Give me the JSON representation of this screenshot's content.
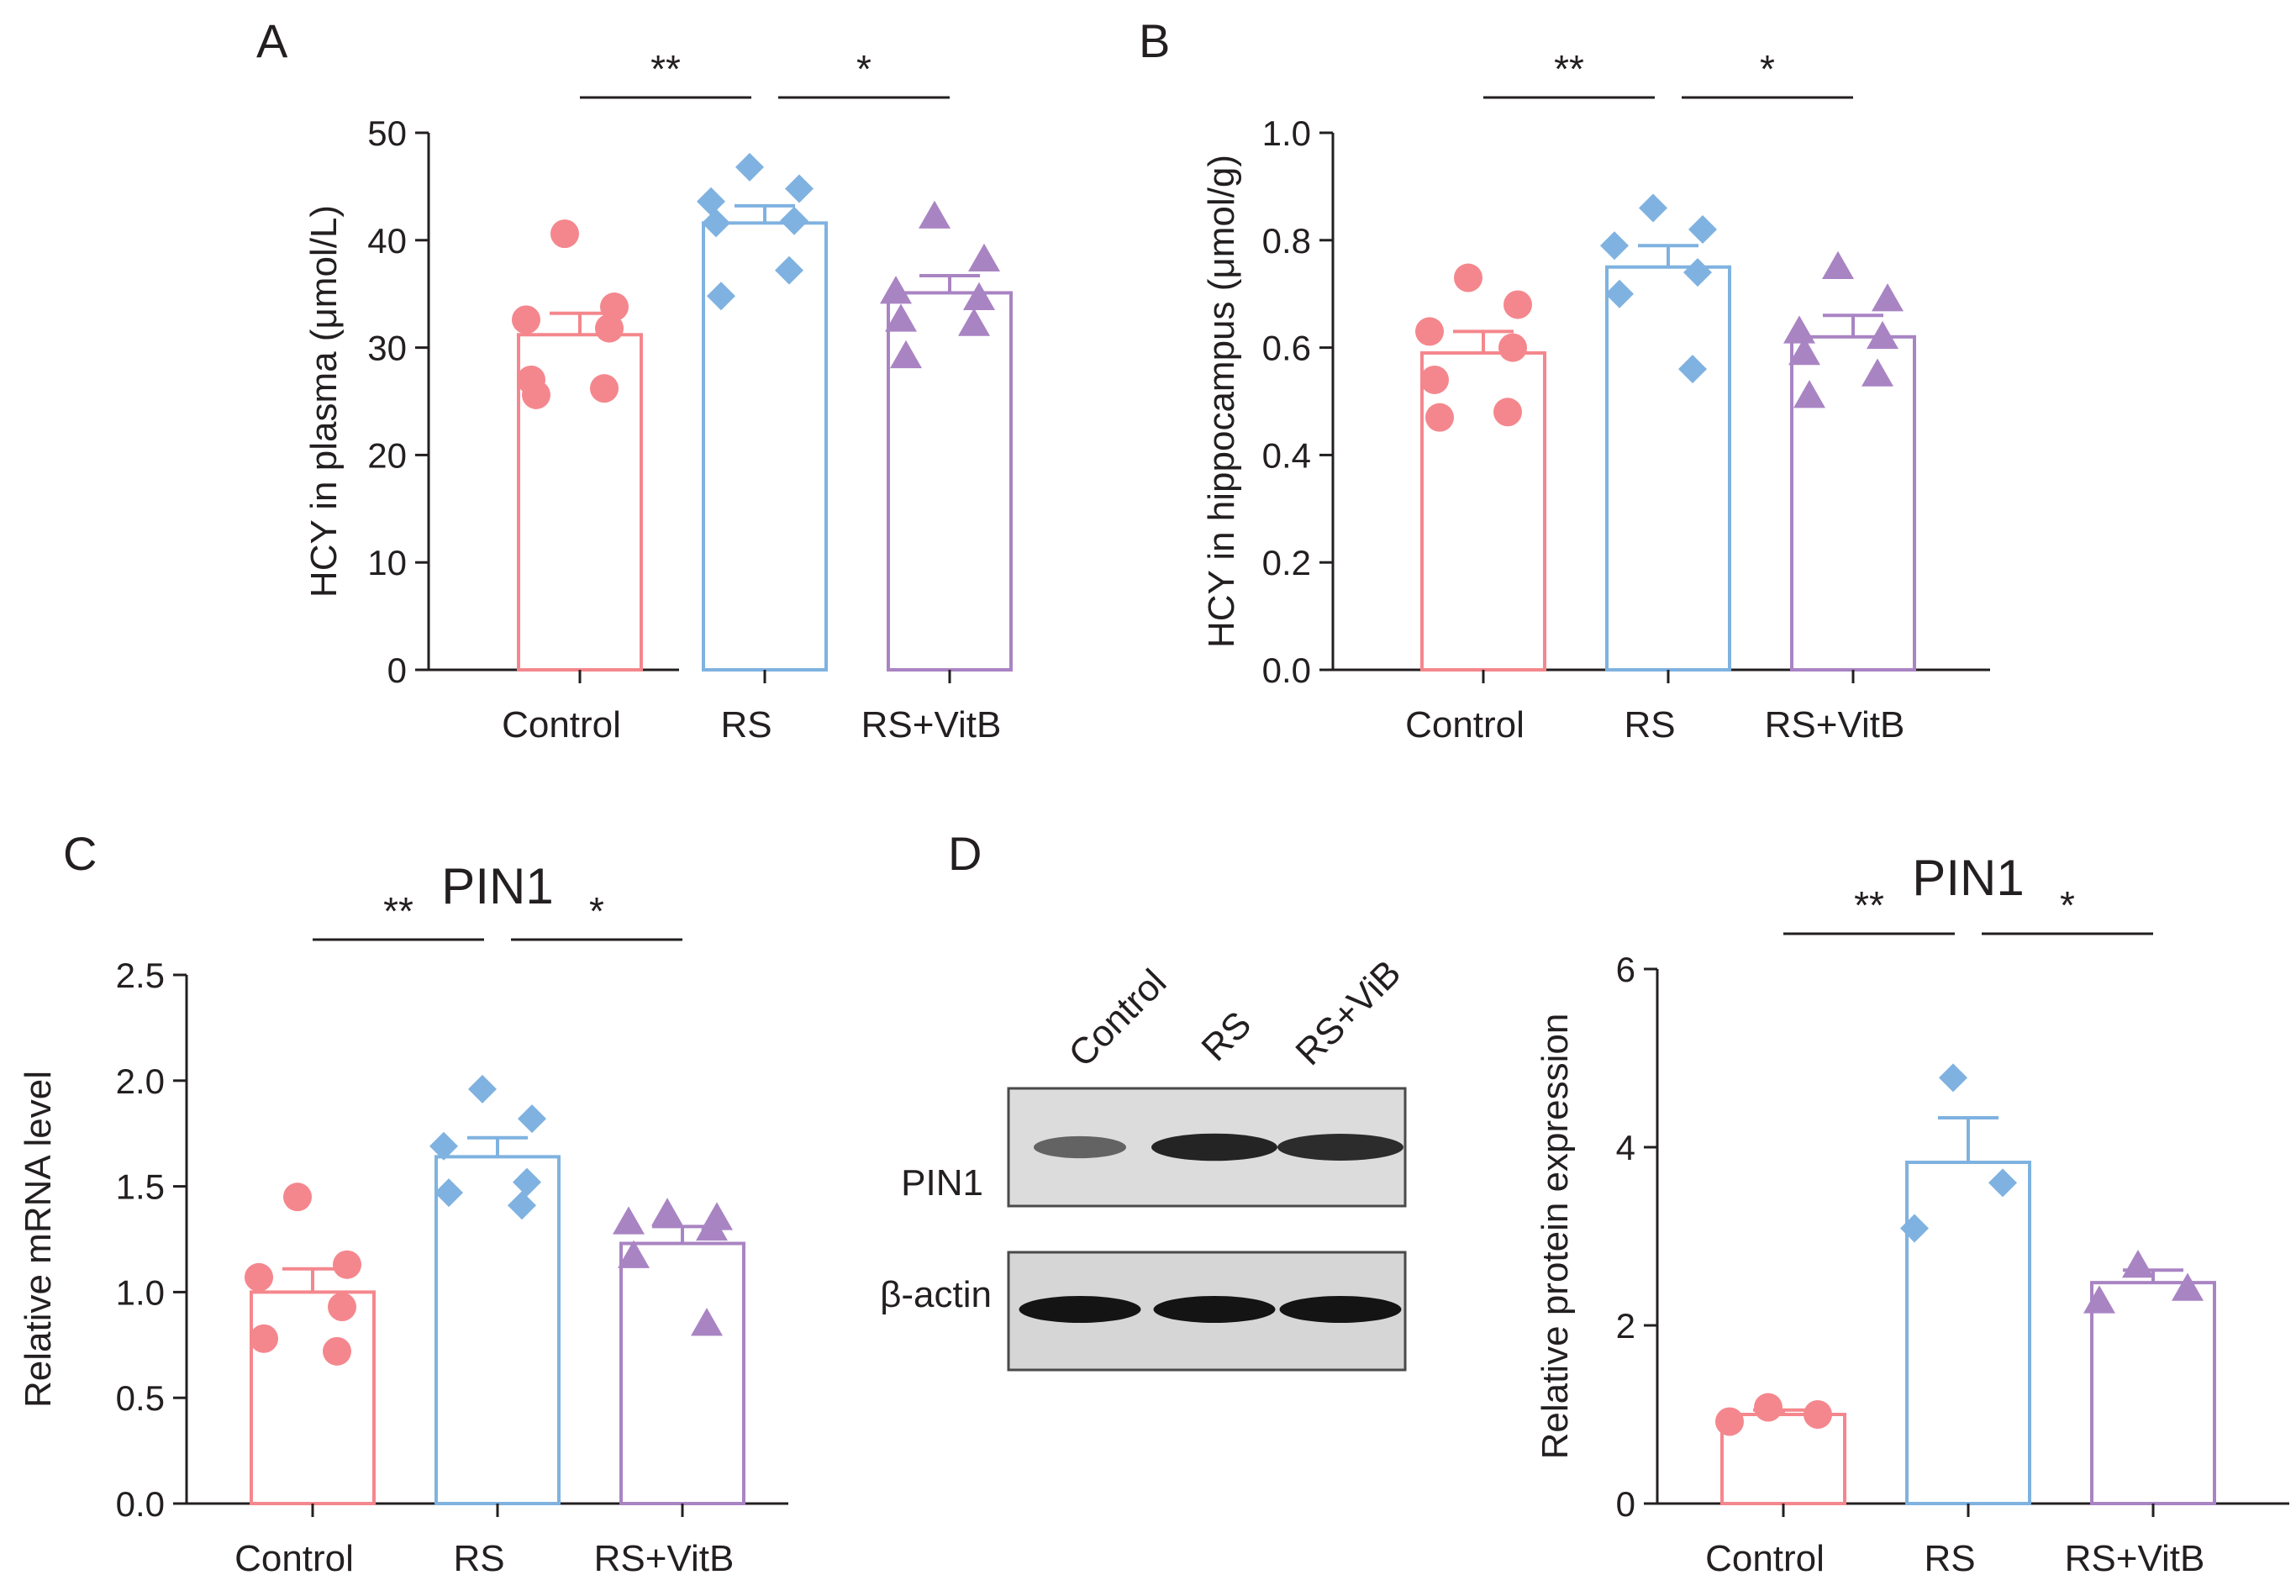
{
  "panel_labels": {
    "a": "A",
    "b": "B",
    "c": "C",
    "d": "D"
  },
  "colors": {
    "control": "#f4878d",
    "rs": "#7fb2e0",
    "rsvitb": "#a984c3",
    "axis": "#231f20"
  },
  "chart_data": [
    {
      "id": "A",
      "type": "bar",
      "title": "",
      "xlabel": "",
      "ylabel": "HCY in plasma (μmol/L)",
      "categories": [
        "Control",
        "RS",
        "RS+VitB"
      ],
      "ylim": [
        0,
        50
      ],
      "yticks": [
        0,
        10,
        20,
        30,
        40,
        50
      ],
      "tick_decimals": 0,
      "means": [
        31.2,
        41.6,
        35.1
      ],
      "sem": [
        2.0,
        1.6,
        1.6
      ],
      "points": [
        [
          40.6,
          33.8,
          32.6,
          31.8,
          27.0,
          26.2,
          25.6
        ],
        [
          46.8,
          44.8,
          43.6,
          41.8,
          41.6,
          37.2,
          34.8
        ],
        [
          42.2,
          38.2,
          35.2,
          34.6,
          32.6,
          32.2,
          29.2
        ]
      ],
      "markers": [
        "circle",
        "diamond",
        "triangle"
      ],
      "significance": [
        {
          "from": 0,
          "to": 1,
          "label": "**"
        },
        {
          "from": 1,
          "to": 2,
          "label": "*"
        }
      ]
    },
    {
      "id": "B",
      "type": "bar",
      "title": "",
      "xlabel": "",
      "ylabel": "HCY in hippocampus (μmol/g)",
      "categories": [
        "Control",
        "RS",
        "RS+VitB"
      ],
      "ylim": [
        0,
        1.0
      ],
      "yticks": [
        0.0,
        0.2,
        0.4,
        0.6,
        0.8,
        1.0
      ],
      "tick_decimals": 1,
      "means": [
        0.59,
        0.75,
        0.62
      ],
      "sem": [
        0.04,
        0.04,
        0.04
      ],
      "points": [
        [
          0.73,
          0.68,
          0.63,
          0.6,
          0.54,
          0.48,
          0.47
        ],
        [
          0.86,
          0.82,
          0.79,
          0.74,
          0.7,
          0.56
        ],
        [
          0.75,
          0.69,
          0.63,
          0.62,
          0.59,
          0.55,
          0.51
        ]
      ],
      "markers": [
        "circle",
        "diamond",
        "triangle"
      ],
      "significance": [
        {
          "from": 0,
          "to": 1,
          "label": "**"
        },
        {
          "from": 1,
          "to": 2,
          "label": "*"
        }
      ]
    },
    {
      "id": "C",
      "type": "bar",
      "title": "PIN1",
      "xlabel": "",
      "ylabel": "Relative mRNA level",
      "categories": [
        "Control",
        "RS",
        "RS+VitB"
      ],
      "ylim": [
        0,
        2.5
      ],
      "yticks": [
        0.0,
        0.5,
        1.0,
        1.5,
        2.0,
        2.5
      ],
      "tick_decimals": 1,
      "means": [
        1.0,
        1.64,
        1.23
      ],
      "sem": [
        0.11,
        0.09,
        0.08
      ],
      "points": [
        [
          1.45,
          1.13,
          1.07,
          0.93,
          0.78,
          0.72
        ],
        [
          1.96,
          1.82,
          1.69,
          1.52,
          1.47,
          1.41
        ],
        [
          1.37,
          1.35,
          1.33,
          1.3,
          1.17,
          0.85
        ]
      ],
      "markers": [
        "circle",
        "diamond",
        "triangle"
      ],
      "significance": [
        {
          "from": 0,
          "to": 1,
          "label": "**"
        },
        {
          "from": 1,
          "to": 2,
          "label": "*"
        }
      ]
    },
    {
      "id": "D",
      "type": "bar",
      "title": "PIN1",
      "xlabel": "",
      "ylabel": "Relative protein expression",
      "categories": [
        "Control",
        "RS",
        "RS+VitB"
      ],
      "ylim": [
        0,
        6
      ],
      "yticks": [
        0,
        2,
        4,
        6
      ],
      "tick_decimals": 0,
      "means": [
        1.0,
        3.83,
        2.48
      ],
      "sem": [
        0.05,
        0.5,
        0.14
      ],
      "points": [
        [
          1.08,
          1.0,
          0.92
        ],
        [
          4.78,
          3.6,
          3.09
        ],
        [
          2.67,
          2.41,
          2.27
        ]
      ],
      "markers": [
        "circle",
        "diamond",
        "triangle"
      ],
      "significance": [
        {
          "from": 0,
          "to": 1,
          "label": "**"
        },
        {
          "from": 1,
          "to": 2,
          "label": "*"
        }
      ]
    }
  ],
  "western_blot": {
    "lane_labels": [
      "Control",
      "RS",
      "RS+ViB"
    ],
    "rows": [
      {
        "label": "PIN1",
        "band_intensity": [
          0.45,
          0.9,
          0.85
        ]
      },
      {
        "label": "β-actin",
        "band_intensity": [
          1.0,
          1.0,
          1.0
        ]
      }
    ]
  }
}
